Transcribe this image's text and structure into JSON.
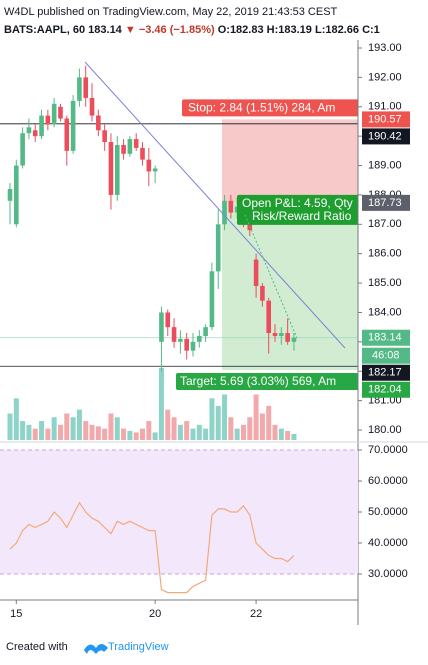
{
  "chart_data": {
    "type": "candlestick",
    "header": "W4DL published on TradingView.com, May 22, 2019 21:43:53 CEST",
    "legend": {
      "symbol": "BATS:AAPL, 60",
      "last": "183.14",
      "change": "▼ −3.46 (−1.85%)",
      "open": "O:182.83",
      "high": "H:183.19",
      "low": "L:182.66",
      "close": "C:1"
    },
    "categories": [
      null,
      "15",
      null,
      null,
      null,
      null,
      null,
      null,
      null,
      null,
      null,
      null,
      null,
      null,
      null,
      null,
      null,
      null,
      null,
      null,
      null,
      null,
      null,
      "20",
      null,
      null,
      null,
      null,
      null,
      null,
      null,
      null,
      null,
      null,
      null,
      null,
      null,
      null,
      null,
      "22",
      null,
      null,
      null,
      null,
      null,
      null
    ],
    "open": [
      187.8,
      187.0,
      189.0,
      190.1,
      190.2,
      190.0,
      190.7,
      190.4,
      191.0,
      190.6,
      189.5,
      191.2,
      192.0,
      191.3,
      190.7,
      190.2,
      189.8,
      188.0,
      189.7,
      189.4,
      189.9,
      189.6,
      189.2,
      188.8,
      183.0,
      184.0,
      183.5,
      183.0,
      183.1,
      182.7,
      183.0,
      183.2,
      183.5,
      185.4,
      187.0,
      187.8,
      187.4,
      187.6,
      187.1,
      185.8,
      184.9,
      184.4,
      183.3,
      183.2,
      183.3,
      183.0
    ],
    "high": [
      188.4,
      189.2,
      190.3,
      190.6,
      190.4,
      190.9,
      190.9,
      191.3,
      191.1,
      190.7,
      191.4,
      192.3,
      192.4,
      191.8,
      190.9,
      190.4,
      190.1,
      190.0,
      189.9,
      190.0,
      190.1,
      189.8,
      189.6,
      189.0,
      184.2,
      184.1,
      183.8,
      183.4,
      183.3,
      183.3,
      183.4,
      183.6,
      185.7,
      187.5,
      188.0,
      188.0,
      187.9,
      187.8,
      187.3,
      186.0,
      185.0,
      184.5,
      183.6,
      183.5,
      183.8,
      183.3
    ],
    "low": [
      187.0,
      186.9,
      188.9,
      189.9,
      189.8,
      189.9,
      190.2,
      190.3,
      190.5,
      189.0,
      189.4,
      191.0,
      191.0,
      190.5,
      190.0,
      189.5,
      187.5,
      187.8,
      189.2,
      189.3,
      189.5,
      189.0,
      188.3,
      188.4,
      182.0,
      183.2,
      182.8,
      182.6,
      182.4,
      182.5,
      182.8,
      183.0,
      183.4,
      184.8,
      186.8,
      187.2,
      187.2,
      186.9,
      186.6,
      184.5,
      184.2,
      182.6,
      183.0,
      182.9,
      182.9,
      182.7
    ],
    "close": [
      188.2,
      189.0,
      190.1,
      190.3,
      190.0,
      190.7,
      190.4,
      191.1,
      190.6,
      189.5,
      191.2,
      192.0,
      191.3,
      190.7,
      190.2,
      189.8,
      188.0,
      189.7,
      189.4,
      189.9,
      189.6,
      189.2,
      188.8,
      188.9,
      184.0,
      183.5,
      183.0,
      183.1,
      182.7,
      183.0,
      183.2,
      183.5,
      185.4,
      187.0,
      187.8,
      187.4,
      187.6,
      187.1,
      186.8,
      184.9,
      184.4,
      183.3,
      183.2,
      183.3,
      183.0,
      183.14
    ],
    "up_color": "#53b987",
    "down_color": "#eb4d5c",
    "volume": [
      35,
      55,
      25,
      20,
      15,
      25,
      15,
      30,
      20,
      35,
      30,
      40,
      25,
      20,
      18,
      15,
      35,
      30,
      15,
      12,
      10,
      15,
      25,
      10,
      95,
      40,
      30,
      20,
      25,
      15,
      20,
      15,
      55,
      45,
      60,
      30,
      15,
      20,
      30,
      60,
      35,
      45,
      20,
      15,
      12,
      8
    ],
    "volume_up_color": "#8ed3c7",
    "volume_down_color": "#f3a8ab",
    "ylim": [
      180,
      193
    ],
    "yticks": [
      {
        "value": 180,
        "label": "180.00"
      },
      {
        "value": 181,
        "label": "181.00"
      },
      {
        "value": 182,
        "label": "182.00"
      },
      {
        "value": 183,
        "label": "183.00"
      },
      {
        "value": 184,
        "label": "184.00"
      },
      {
        "value": 185,
        "label": "185.00"
      },
      {
        "value": 186,
        "label": "186.00"
      },
      {
        "value": 187,
        "label": "187.00"
      },
      {
        "value": 188,
        "label": "188.00"
      },
      {
        "value": 189,
        "label": "189.00"
      },
      {
        "value": 190,
        "label": "190.00"
      },
      {
        "value": 191,
        "label": "191.00"
      },
      {
        "value": 192,
        "label": "192.00"
      },
      {
        "value": 193,
        "label": "193.00"
      }
    ],
    "position": {
      "stop": 190.57,
      "entry": 187.73,
      "target": 182.04,
      "stop_text": "Stop: 2.84 (1.51%) 284, Am",
      "target_text": "Target: 5.69 (3.03%) 569, Am",
      "pnl_text": "Open P&L: 4.59, Qty",
      "rr_text": "Risk/Reward Ratio"
    },
    "hlines": [
      190.42,
      182.17
    ],
    "price_labels": [
      {
        "value": 190.57,
        "color": "#ef5350"
      },
      {
        "value": 190.42,
        "color": "#131722"
      },
      {
        "value": 187.73,
        "color": "#5d606b"
      },
      {
        "value": 183.14,
        "color": "#53b987"
      },
      {
        "value": 182.17,
        "color": "#131722"
      },
      {
        "value": 182.04,
        "color": "#28a745"
      }
    ],
    "countdown": "46:08",
    "rsi": {
      "values": [
        38,
        40,
        44,
        46,
        45,
        46,
        47,
        50,
        48,
        45,
        49,
        53,
        50,
        48,
        47,
        45,
        43,
        47,
        46,
        47,
        46,
        45,
        44,
        44,
        25,
        24,
        24,
        24,
        24,
        26,
        27,
        28,
        49,
        51,
        51,
        50,
        50,
        52,
        49,
        40,
        38,
        36,
        35,
        35,
        34,
        36
      ],
      "color": "#f4a97a",
      "band": [
        30,
        70
      ],
      "band_color": "#f3e8fb",
      "ylim": [
        23,
        73
      ],
      "yticks": [
        {
          "value": 30,
          "label": "30.0000"
        },
        {
          "value": 40,
          "label": "40.0000"
        },
        {
          "value": 50,
          "label": "50.0000"
        },
        {
          "value": 60,
          "label": "60.0000"
        },
        {
          "value": 70,
          "label": "70.0000"
        }
      ]
    },
    "footer": "Created with",
    "brand": "TradingView"
  }
}
